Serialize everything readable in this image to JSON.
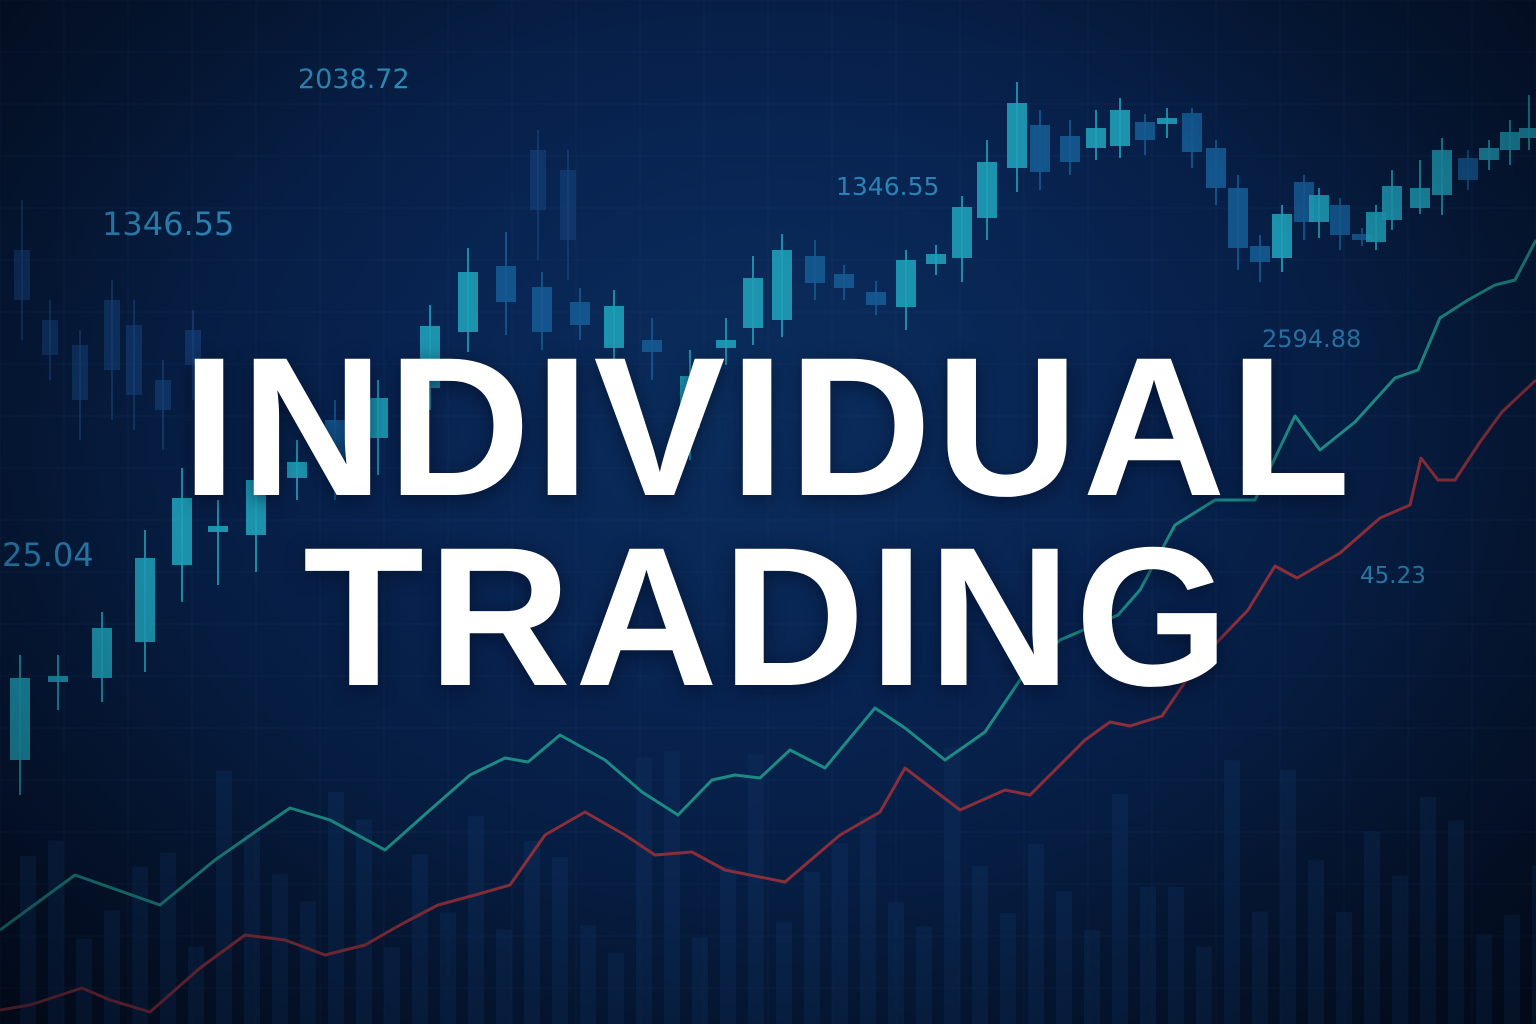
{
  "headline": {
    "line1": "INDIVIDUAL",
    "line2": "TRADING"
  },
  "price_labels": [
    "2038.72",
    "1346.55",
    "1346.55",
    "2594.88",
    "25.04",
    "45.23"
  ],
  "colors": {
    "background": "#082350",
    "candle_up": "#1f9fb8",
    "candle_down": "#155a92",
    "line_teal": "#1d8a84",
    "line_red": "#8a2e3a",
    "headline": "#ffffff"
  }
}
